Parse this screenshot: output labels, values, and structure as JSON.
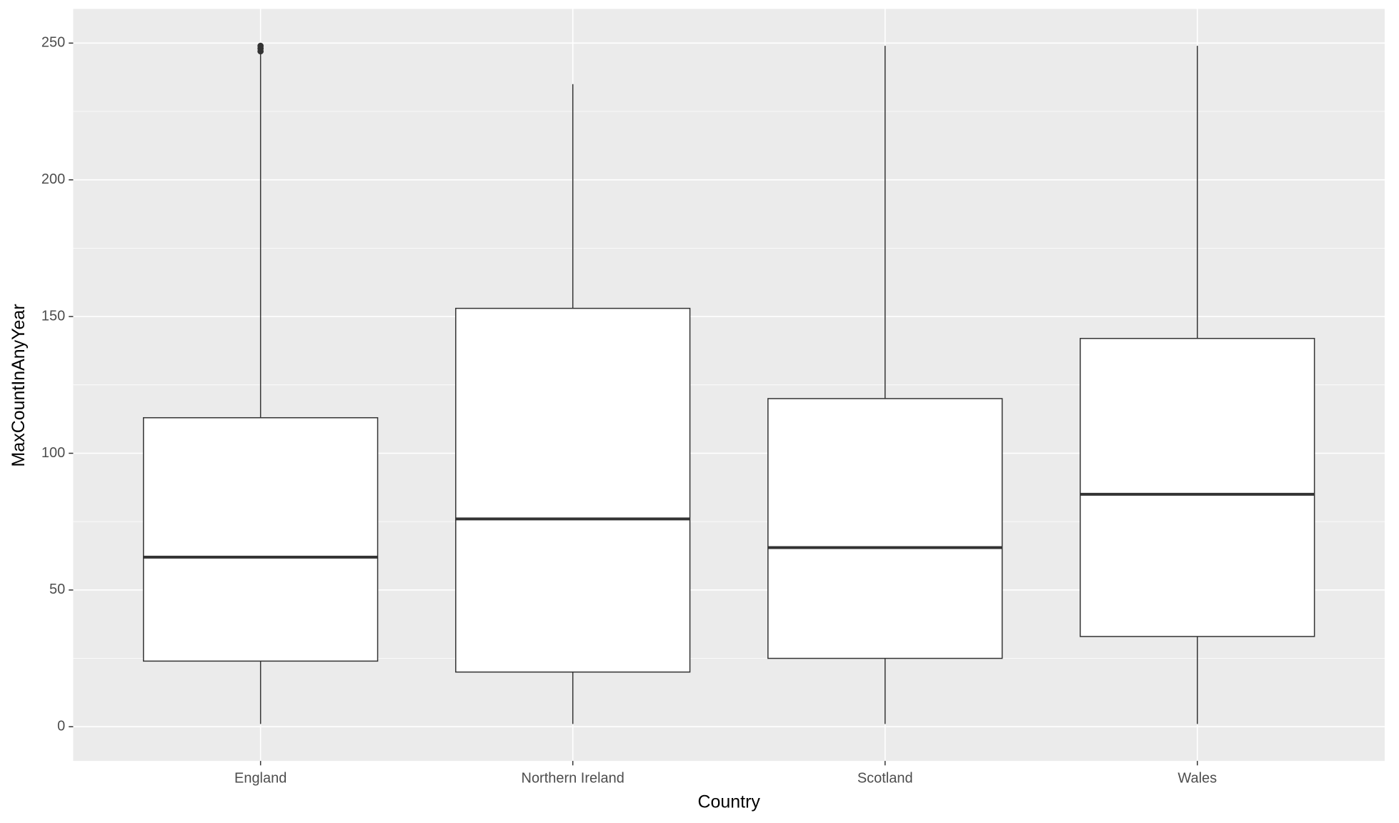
{
  "chart_data": {
    "type": "box",
    "x_label": "Country",
    "y_label": "MaxCountInAnyYear",
    "categories": [
      "England",
      "Northern Ireland",
      "Scotland",
      "Wales"
    ],
    "boxes": [
      {
        "low": 1,
        "q1": 24,
        "median": 62,
        "q3": 113,
        "high": 246,
        "outliers": [
          247,
          248,
          249
        ]
      },
      {
        "low": 1,
        "q1": 20,
        "median": 76,
        "q3": 153,
        "high": 235,
        "outliers": []
      },
      {
        "low": 1,
        "q1": 25,
        "median": 65.5,
        "q3": 120,
        "high": 249,
        "outliers": []
      },
      {
        "low": 1,
        "q1": 33,
        "median": 85,
        "q3": 142,
        "high": 249,
        "outliers": []
      }
    ],
    "ylim": [
      -12.5,
      262.5
    ],
    "yticks": [
      0,
      50,
      100,
      150,
      200,
      250
    ],
    "yminor": [
      25,
      75,
      125,
      175,
      225
    ],
    "grid": true,
    "box_fill": "#ffffff",
    "line_color": "#333333",
    "panel_color": "#ebebeb"
  }
}
